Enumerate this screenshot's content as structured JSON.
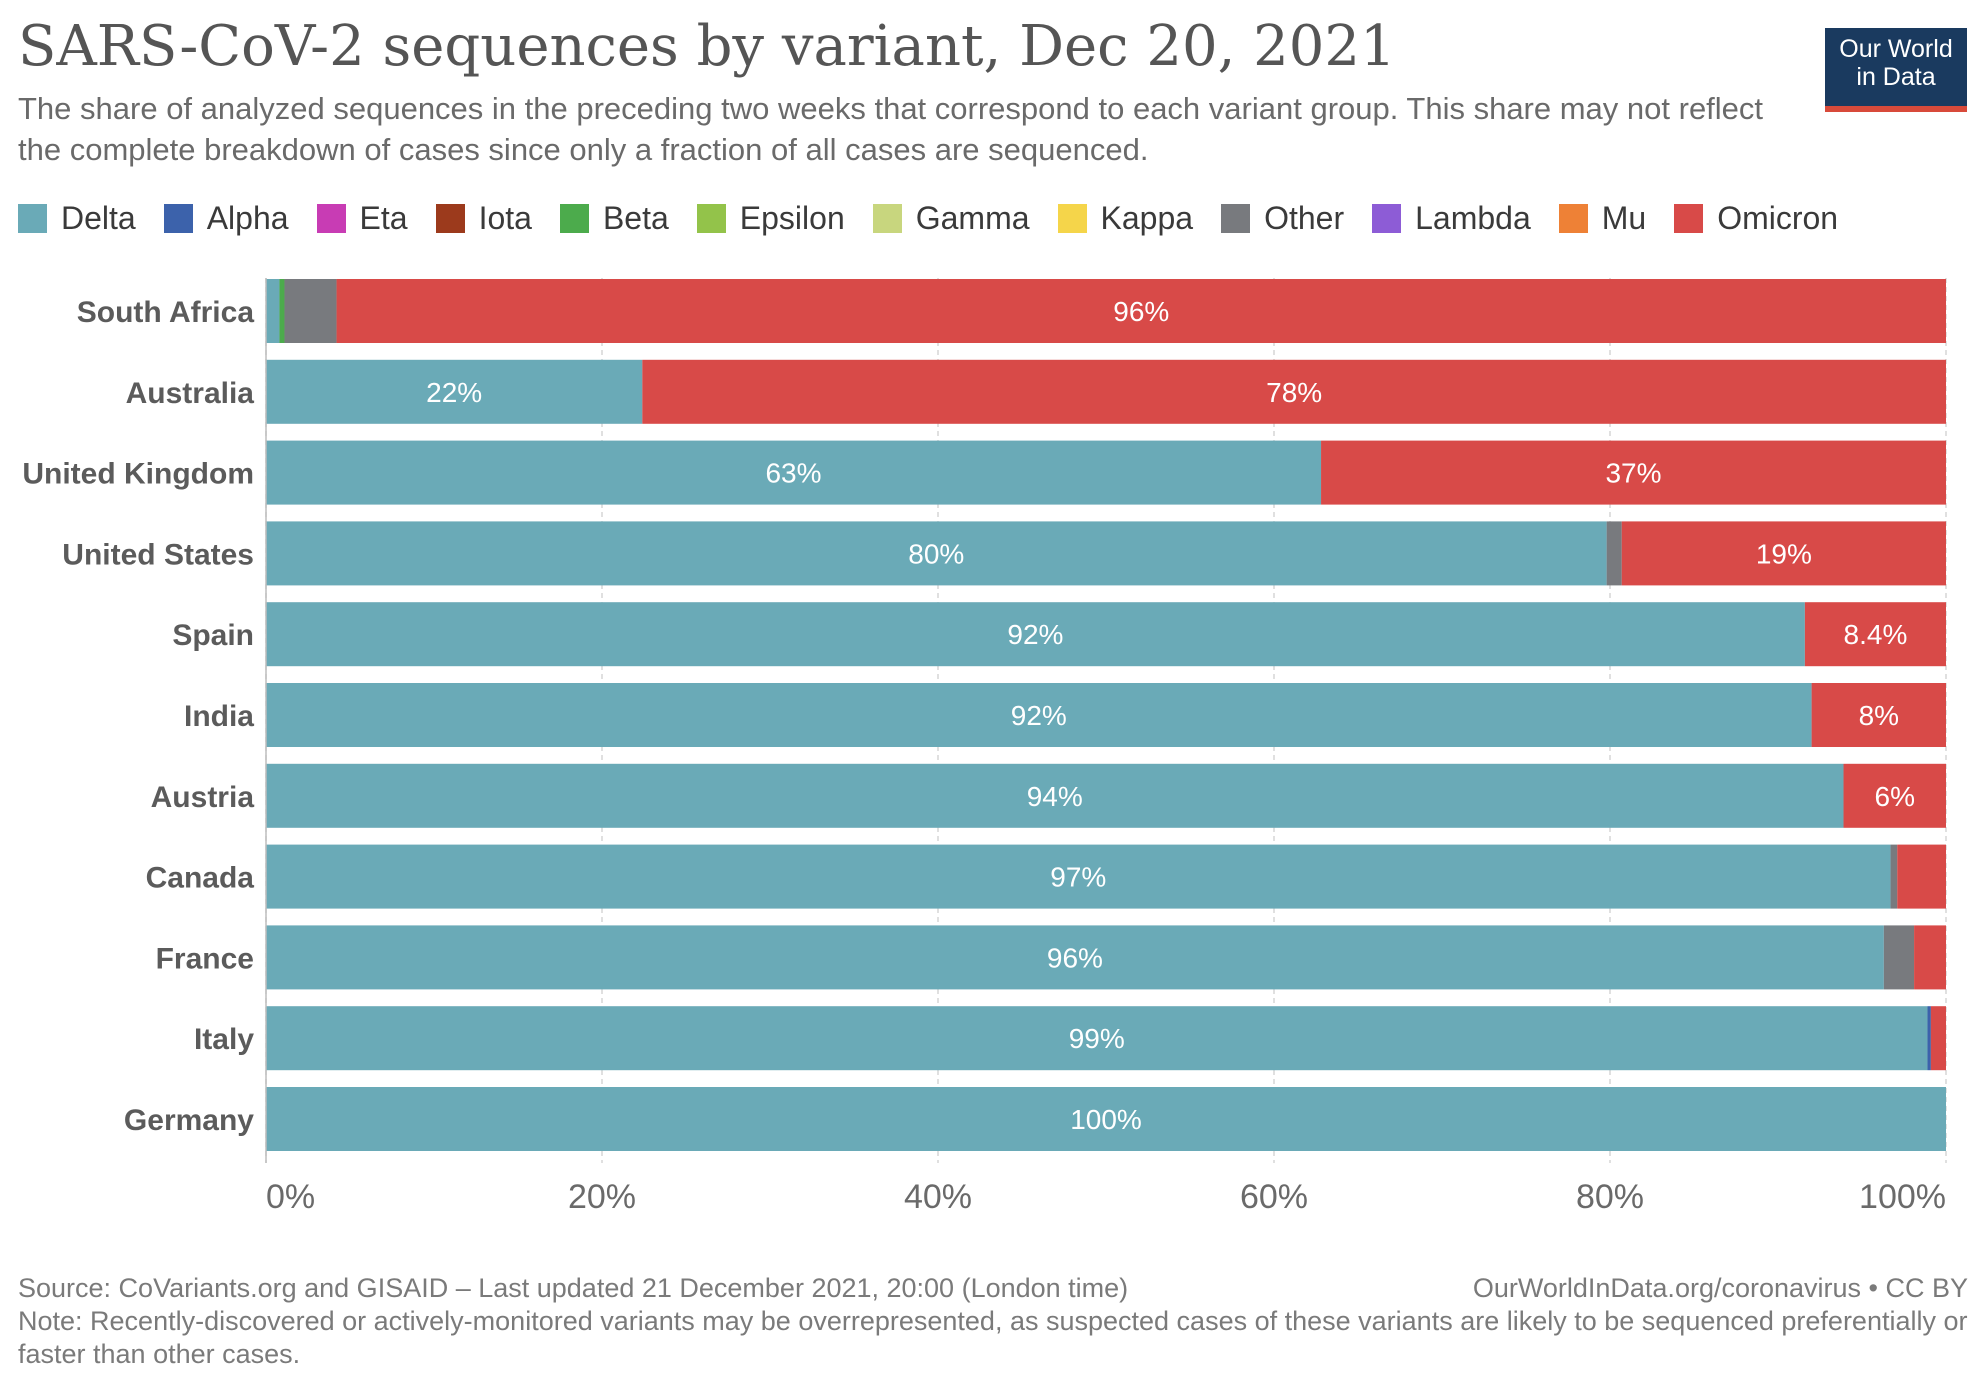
{
  "header": {
    "title": "SARS-CoV-2 sequences by variant, Dec 20, 2021",
    "subtitle": "The share of analyzed sequences in the preceding two weeks that correspond to each variant group. This share may not reflect the complete breakdown of cases since only a fraction of all cases are sequenced.",
    "logo_line1": "Our World",
    "logo_line2": "in Data"
  },
  "footer": {
    "source": "Source: CoVariants.org and GISAID – Last updated 21 December 2021, 20:00 (London time)",
    "credit": "OurWorldInData.org/coronavirus • CC BY",
    "note": "Note: Recently-discovered or actively-monitored variants may be overrepresented, as suspected cases of these variants are likely to be sequenced preferentially or faster than other cases."
  },
  "chart_data": {
    "type": "bar",
    "orientation": "horizontal",
    "stacked": true,
    "normalized": true,
    "xlim": [
      0,
      100
    ],
    "x_ticks": [
      "0%",
      "20%",
      "40%",
      "60%",
      "80%",
      "100%"
    ],
    "grid": "vertical dashed",
    "legend_position": "top",
    "categories": [
      "South Africa",
      "Australia",
      "United Kingdom",
      "United States",
      "Spain",
      "India",
      "Austria",
      "Canada",
      "France",
      "Italy",
      "Germany"
    ],
    "series": [
      {
        "name": "Delta",
        "color": "#6aaab7",
        "values": [
          0.8,
          22.4,
          62.8,
          79.8,
          91.6,
          92.0,
          93.9,
          96.7,
          96.3,
          98.9,
          100
        ],
        "labels": [
          "",
          "22%",
          "63%",
          "80%",
          "92%",
          "92%",
          "94%",
          "97%",
          "96%",
          "99%",
          "100%"
        ]
      },
      {
        "name": "Alpha",
        "color": "#3c62ab",
        "values": [
          0,
          0,
          0,
          0,
          0,
          0,
          0,
          0,
          0,
          0.2,
          0
        ],
        "labels": [
          "",
          "",
          "",
          "",
          "",
          "",
          "",
          "",
          "",
          "",
          ""
        ]
      },
      {
        "name": "Eta",
        "color": "#c83cb4",
        "values": [
          0,
          0,
          0,
          0,
          0,
          0,
          0,
          0,
          0,
          0,
          0
        ],
        "labels": [
          "",
          "",
          "",
          "",
          "",
          "",
          "",
          "",
          "",
          "",
          ""
        ]
      },
      {
        "name": "Iota",
        "color": "#9c3a1c",
        "values": [
          0,
          0,
          0,
          0,
          0,
          0,
          0,
          0,
          0,
          0,
          0
        ],
        "labels": [
          "",
          "",
          "",
          "",
          "",
          "",
          "",
          "",
          "",
          "",
          ""
        ]
      },
      {
        "name": "Beta",
        "color": "#4cab4c",
        "values": [
          0.3,
          0,
          0,
          0,
          0,
          0,
          0,
          0,
          0,
          0,
          0
        ],
        "labels": [
          "",
          "",
          "",
          "",
          "",
          "",
          "",
          "",
          "",
          "",
          ""
        ]
      },
      {
        "name": "Epsilon",
        "color": "#93c34a",
        "values": [
          0,
          0,
          0,
          0,
          0,
          0,
          0,
          0,
          0,
          0,
          0
        ],
        "labels": [
          "",
          "",
          "",
          "",
          "",
          "",
          "",
          "",
          "",
          "",
          ""
        ]
      },
      {
        "name": "Gamma",
        "color": "#c8d67e",
        "values": [
          0,
          0,
          0,
          0,
          0,
          0,
          0,
          0,
          0,
          0,
          0
        ],
        "labels": [
          "",
          "",
          "",
          "",
          "",
          "",
          "",
          "",
          "",
          "",
          ""
        ]
      },
      {
        "name": "Kappa",
        "color": "#f5d54a",
        "values": [
          0,
          0,
          0,
          0,
          0,
          0,
          0,
          0,
          0,
          0,
          0
        ],
        "labels": [
          "",
          "",
          "",
          "",
          "",
          "",
          "",
          "",
          "",
          "",
          ""
        ]
      },
      {
        "name": "Other",
        "color": "#787a7e",
        "values": [
          3.1,
          0,
          0,
          0.9,
          0,
          0,
          0,
          0.4,
          1.8,
          0,
          0
        ],
        "labels": [
          "",
          "",
          "",
          "",
          "",
          "",
          "",
          "",
          "",
          "",
          ""
        ]
      },
      {
        "name": "Lambda",
        "color": "#8d5cd6",
        "values": [
          0,
          0,
          0,
          0,
          0,
          0,
          0,
          0,
          0,
          0,
          0
        ],
        "labels": [
          "",
          "",
          "",
          "",
          "",
          "",
          "",
          "",
          "",
          "",
          ""
        ]
      },
      {
        "name": "Mu",
        "color": "#ee8136",
        "values": [
          0,
          0,
          0,
          0,
          0,
          0,
          0,
          0,
          0,
          0,
          0
        ],
        "labels": [
          "",
          "",
          "",
          "",
          "",
          "",
          "",
          "",
          "",
          "",
          ""
        ]
      },
      {
        "name": "Omicron",
        "color": "#d84a48",
        "values": [
          95.8,
          77.6,
          37.2,
          19.3,
          8.4,
          8.0,
          6.1,
          2.9,
          1.9,
          0.9,
          0
        ],
        "labels": [
          "96%",
          "78%",
          "37%",
          "19%",
          "8.4%",
          "8%",
          "6%",
          "",
          "",
          "",
          ""
        ]
      }
    ]
  }
}
